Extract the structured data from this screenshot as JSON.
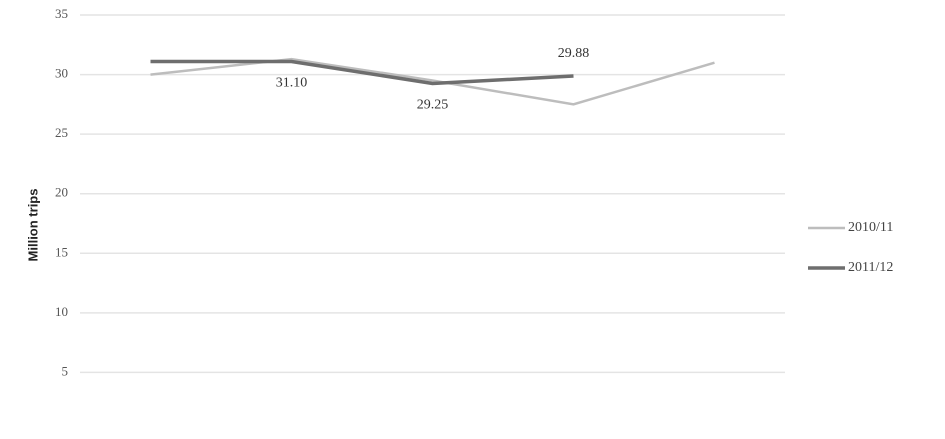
{
  "chart_data": {
    "type": "line",
    "y_label": "Million trips",
    "categories": [
      null,
      null,
      null,
      null,
      null
    ],
    "series": [
      {
        "name": "2010/11",
        "color": "#bdbdbd",
        "values": [
          30.0,
          31.3,
          29.5,
          27.5,
          31.0
        ]
      },
      {
        "name": "2011/12",
        "color": "#6e6e6e",
        "values": [
          31.1,
          31.1,
          29.25,
          29.88,
          null
        ],
        "value_labels": [
          null,
          "31.10",
          "29.25",
          "29.88",
          null
        ]
      }
    ],
    "ylim": [
      0,
      35
    ],
    "yticks": [
      5,
      10,
      15,
      20,
      25,
      30,
      35
    ],
    "grid": true,
    "legend": "right"
  }
}
